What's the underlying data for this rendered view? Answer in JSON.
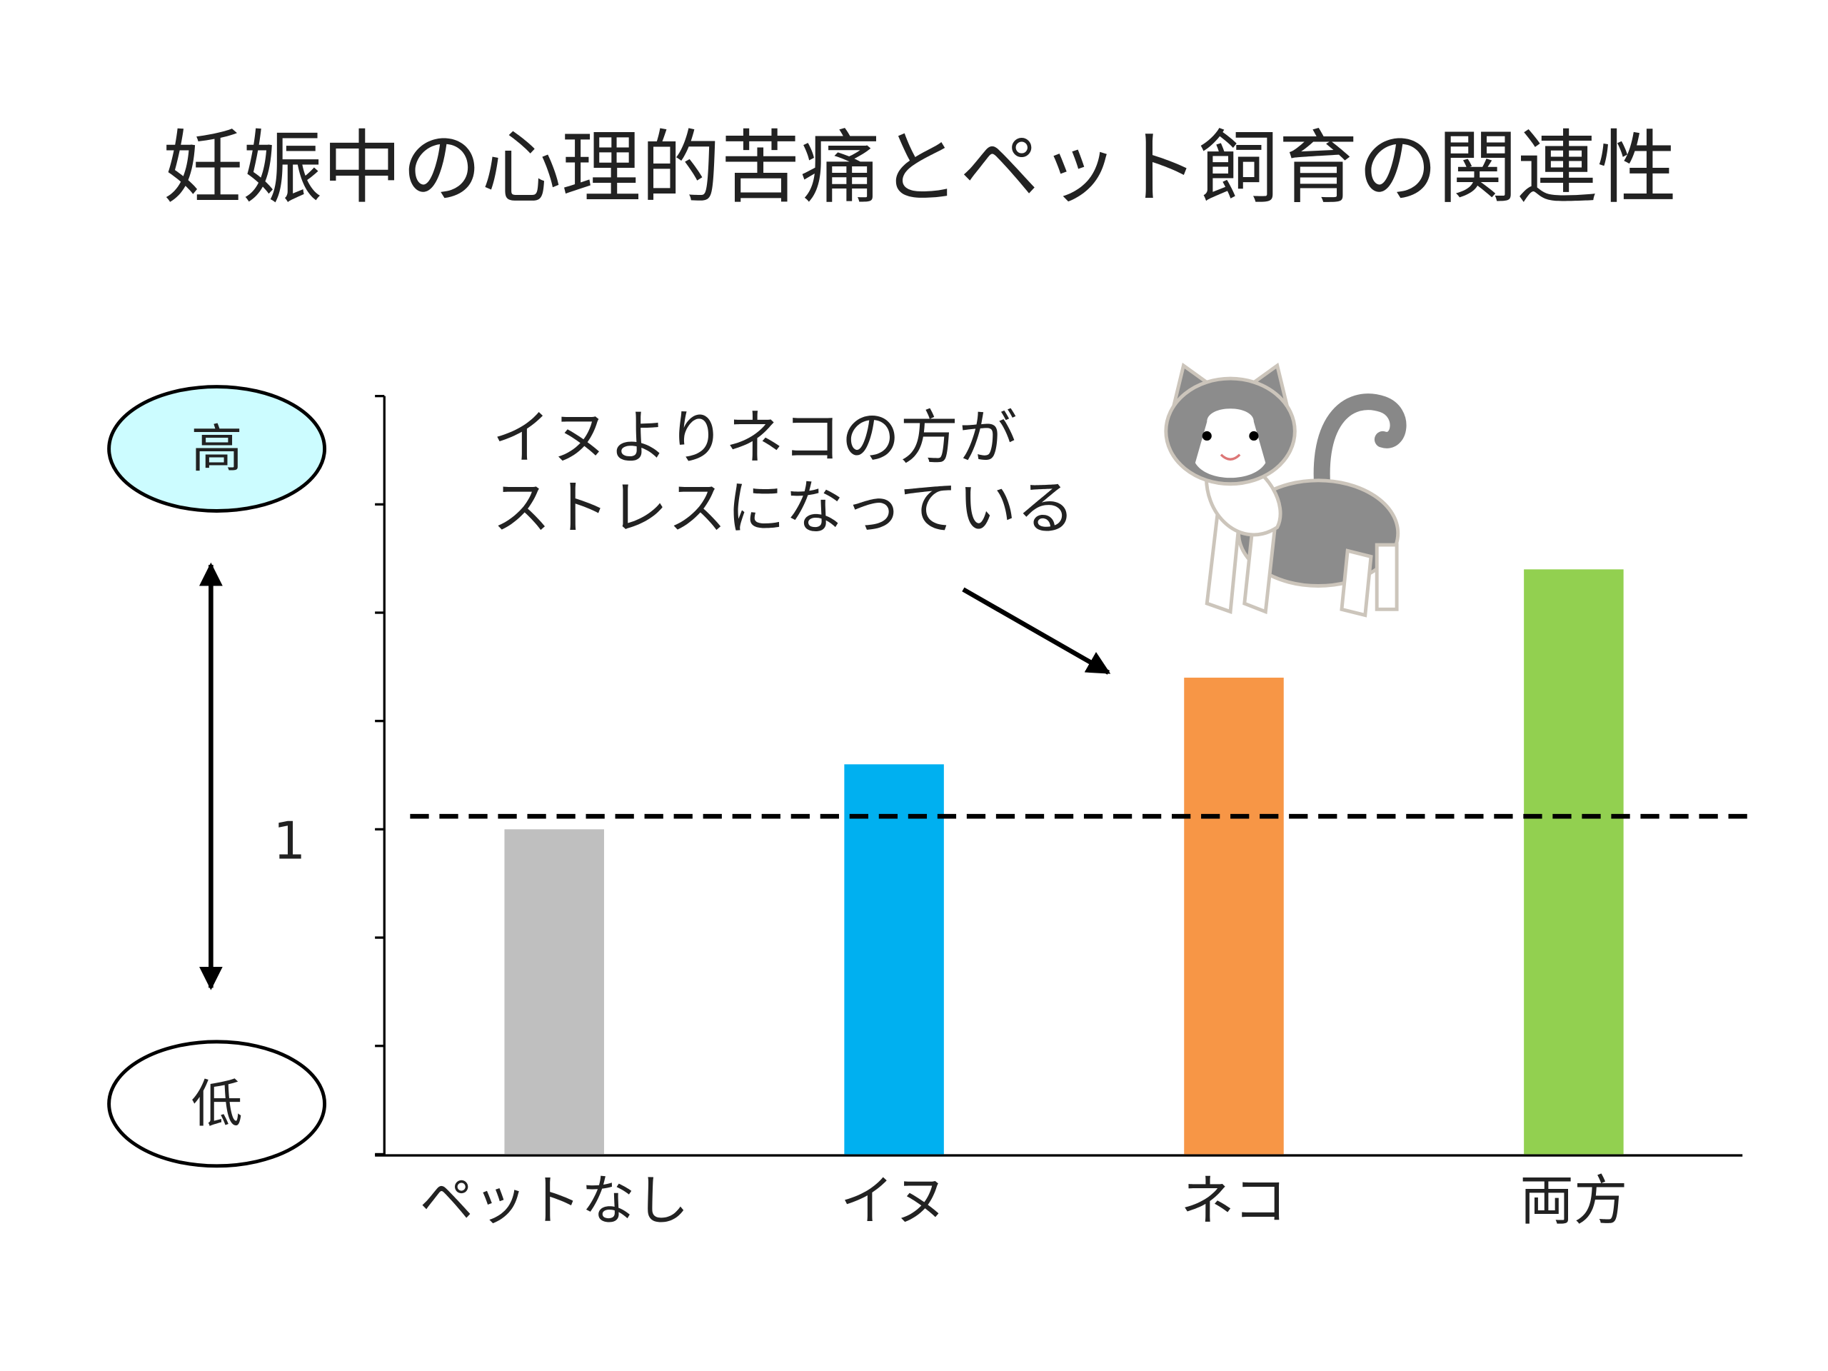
{
  "chart_data": {
    "type": "bar",
    "title": "妊娠中の心理的苦痛とペット飼育の関連性",
    "categories": [
      "ペットなし",
      "イヌ",
      "ネコ",
      "両方"
    ],
    "values": [
      1.0,
      1.15,
      1.35,
      1.6
    ],
    "colors": [
      "#bfbfbf",
      "#00b0f0",
      "#f79646",
      "#92d050"
    ],
    "ylim": [
      0.25,
      2.0
    ],
    "yticks": [
      1
    ],
    "ytick_marks": [
      0.25,
      0.5,
      0.75,
      1.0,
      1.25,
      1.5,
      1.75,
      2.0
    ],
    "reference_line": {
      "value": 1.03,
      "style": "dashed",
      "color": "#000000"
    },
    "axis_labels": {
      "high": "高",
      "low": "低"
    },
    "annotation": [
      "イヌよりネコの方が",
      "ストレスになっている"
    ]
  }
}
